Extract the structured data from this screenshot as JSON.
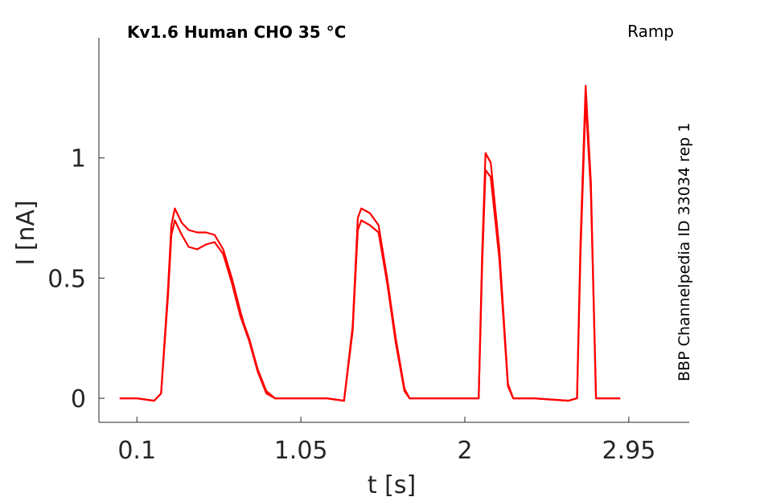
{
  "chart_data": {
    "type": "line",
    "title": "Kv1.6  Human  CHO  35 °C",
    "protocol_label": "Ramp",
    "side_label": "BBP Channelpedia ID 33034 rep 1",
    "xlabel": "t [s]",
    "ylabel": "I [nA]",
    "xlim": [
      -0.12,
      3.3
    ],
    "ylim": [
      -0.1,
      1.5
    ],
    "x_ticks": [
      0.1,
      1.05,
      2,
      2.95
    ],
    "x_tick_labels": [
      "0.1",
      "1.05",
      "2",
      "2.95"
    ],
    "y_ticks": [
      0,
      0.5,
      1
    ],
    "y_tick_labels": [
      "0",
      "0.5",
      "1"
    ],
    "grid": false,
    "color": "#ff0000",
    "series": [
      {
        "x": [
          0.0,
          0.1,
          0.2,
          0.24,
          0.28,
          0.3,
          0.32,
          0.36,
          0.4,
          0.45,
          0.5,
          0.55,
          0.6,
          0.65,
          0.7,
          0.72,
          0.75,
          0.8,
          0.85,
          0.9,
          0.95,
          1.0,
          1.2,
          1.3,
          1.35,
          1.38,
          1.4,
          1.45,
          1.5,
          1.55,
          1.6,
          1.65,
          1.68,
          1.72,
          1.9,
          2.08,
          2.1,
          2.12,
          2.15,
          2.2,
          2.25,
          2.28,
          2.3,
          2.4,
          2.6,
          2.65,
          2.67,
          2.7,
          2.73,
          2.76,
          2.8,
          2.9
        ],
        "values": [
          0.0,
          0.0,
          -0.01,
          0.02,
          0.45,
          0.72,
          0.79,
          0.73,
          0.7,
          0.69,
          0.69,
          0.68,
          0.62,
          0.5,
          0.36,
          0.31,
          0.25,
          0.12,
          0.03,
          0.0,
          0.0,
          0.0,
          0.0,
          -0.01,
          0.3,
          0.75,
          0.79,
          0.77,
          0.72,
          0.5,
          0.25,
          0.04,
          0.0,
          0.0,
          0.0,
          0.0,
          0.6,
          1.02,
          0.98,
          0.62,
          0.06,
          0.0,
          0.0,
          0.0,
          -0.01,
          0.0,
          0.65,
          1.3,
          0.9,
          0.0,
          0.0,
          0.0
        ]
      },
      {
        "x": [
          0.0,
          0.1,
          0.2,
          0.24,
          0.28,
          0.3,
          0.32,
          0.36,
          0.4,
          0.45,
          0.5,
          0.55,
          0.6,
          0.65,
          0.7,
          0.72,
          0.75,
          0.8,
          0.85,
          0.9,
          0.95,
          1.0,
          1.2,
          1.3,
          1.35,
          1.38,
          1.4,
          1.45,
          1.5,
          1.55,
          1.6,
          1.65,
          1.68,
          1.72,
          1.9,
          2.08,
          2.1,
          2.12,
          2.15,
          2.2,
          2.25,
          2.28,
          2.3,
          2.4,
          2.6,
          2.65,
          2.67,
          2.7,
          2.73,
          2.76,
          2.8,
          2.9
        ],
        "values": [
          0.0,
          0.0,
          -0.01,
          0.02,
          0.42,
          0.68,
          0.74,
          0.68,
          0.63,
          0.62,
          0.64,
          0.65,
          0.6,
          0.48,
          0.34,
          0.3,
          0.24,
          0.11,
          0.02,
          0.0,
          0.0,
          0.0,
          0.0,
          -0.01,
          0.28,
          0.7,
          0.74,
          0.72,
          0.69,
          0.48,
          0.23,
          0.03,
          0.0,
          0.0,
          0.0,
          0.0,
          0.55,
          0.95,
          0.92,
          0.58,
          0.05,
          0.0,
          0.0,
          0.0,
          -0.01,
          0.0,
          0.6,
          1.24,
          0.86,
          0.0,
          0.0,
          0.0
        ]
      }
    ]
  }
}
